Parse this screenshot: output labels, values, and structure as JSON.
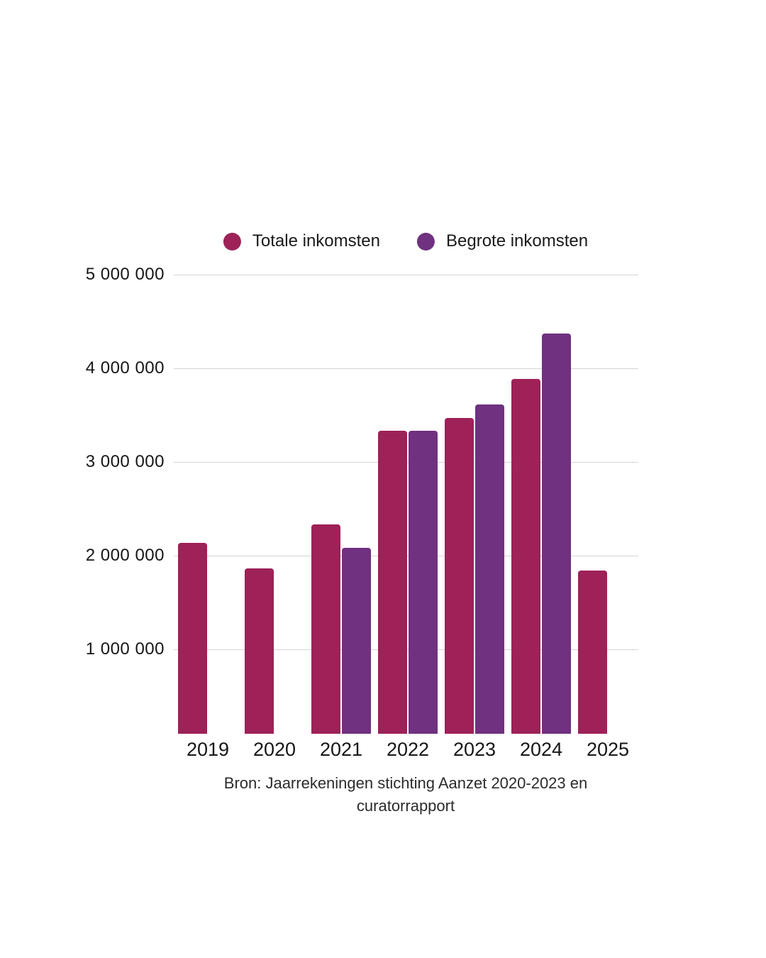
{
  "chart_data": {
    "type": "bar",
    "title": "",
    "categories": [
      "2019",
      "2020",
      "2021",
      "2022",
      "2023",
      "2024",
      "2025"
    ],
    "series": [
      {
        "name": "Totale inkomsten",
        "color": "#9e2157",
        "values": [
          2140000,
          1860000,
          2330000,
          3330000,
          3470000,
          3890000,
          1840000
        ]
      },
      {
        "name": "Begrote inkomsten",
        "color": "#6f3180",
        "values": [
          null,
          null,
          2080000,
          3330000,
          3610000,
          4370000,
          null
        ]
      }
    ],
    "y_ticks": [
      {
        "value": 5000000,
        "label": "5 000 000"
      },
      {
        "value": 4000000,
        "label": "4 000 000"
      },
      {
        "value": 3000000,
        "label": "3 000 000"
      },
      {
        "value": 2000000,
        "label": "2 000 000"
      },
      {
        "value": 1000000,
        "label": "1 000 000"
      }
    ],
    "ylim": [
      0,
      5000000
    ],
    "grid": true,
    "legend_position": "top",
    "source": "Bron: Jaarrekeningen stichting Aanzet 2020-2023 en curatorrapport"
  },
  "source_note": {
    "lines": [
      "Bron: Jaarrekeningen stichting Aanzet 2020-2023 en",
      "curatorrapport"
    ]
  }
}
